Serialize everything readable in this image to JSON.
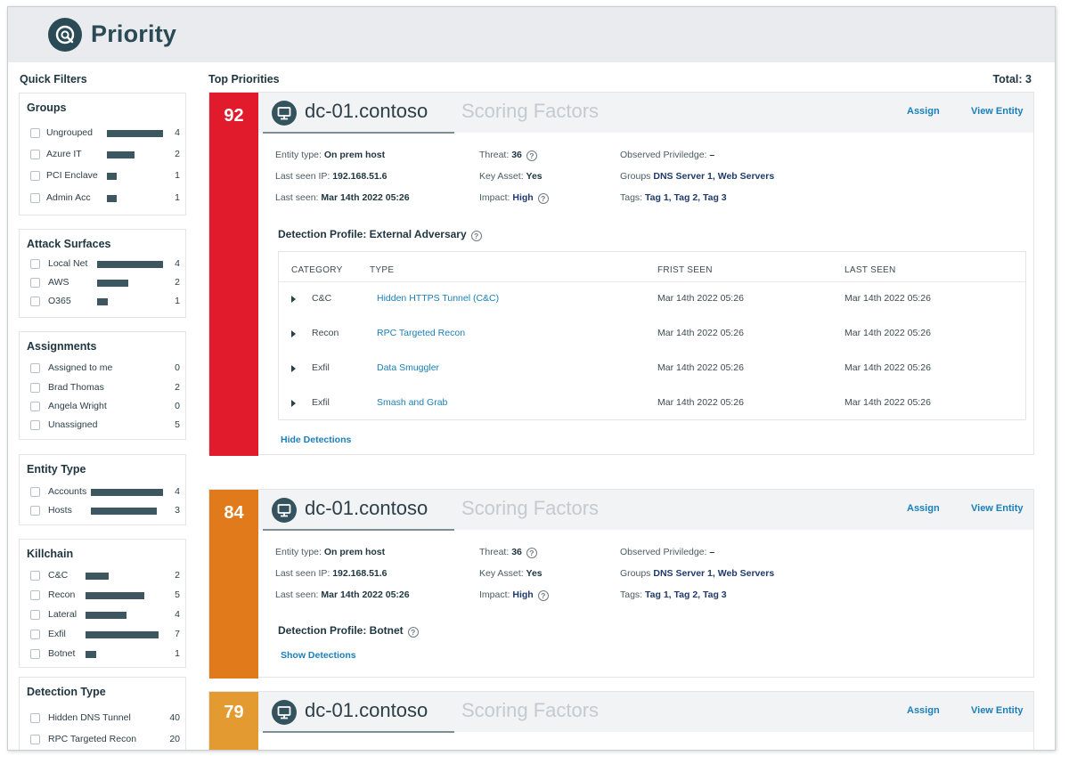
{
  "app": {
    "title": "Priority"
  },
  "sidebar": {
    "title": "Quick Filters",
    "groups": [
      {
        "title": "Groups",
        "items": [
          {
            "label": "Ungrouped",
            "count": "4",
            "level": 0.63
          },
          {
            "label": "Azure IT",
            "count": "2",
            "level": 0.31
          },
          {
            "label": "PCI Enclave",
            "count": "1",
            "level": 0.11
          },
          {
            "label": "Admin Acc",
            "count": "1",
            "level": 0.11
          }
        ]
      },
      {
        "title": "Attack Surfaces",
        "items": [
          {
            "label": "Local Net",
            "count": "4",
            "level": 0.73
          },
          {
            "label": "AWS",
            "count": "2",
            "level": 0.35
          },
          {
            "label": "O365",
            "count": "1",
            "level": 0.12
          }
        ]
      },
      {
        "title": "Assignments",
        "items": [
          {
            "label": "Assigned to me",
            "count": "0"
          },
          {
            "label": "Brad Thomas",
            "count": "2"
          },
          {
            "label": "Angela Wright",
            "count": "0"
          },
          {
            "label": "Unassigned",
            "count": "5"
          }
        ]
      },
      {
        "title": "Entity Type",
        "items": [
          {
            "label": "Accounts",
            "count": "4",
            "level": 0.82
          },
          {
            "label": "Hosts",
            "count": "3",
            "level": 0.75
          }
        ]
      },
      {
        "title": "Killchain",
        "items": [
          {
            "label": "C&C",
            "count": "2",
            "level": 0.26
          },
          {
            "label": "Recon",
            "count": "5",
            "level": 0.66
          },
          {
            "label": "Lateral",
            "count": "4",
            "level": 0.46
          },
          {
            "label": "Exfil",
            "count": "7",
            "level": 0.82
          },
          {
            "label": "Botnet",
            "count": "1",
            "level": 0.12
          }
        ]
      },
      {
        "title": "Detection Type",
        "items": [
          {
            "label": "Hidden DNS Tunnel",
            "count": "40"
          },
          {
            "label": "RPC Targeted Recon",
            "count": "20"
          }
        ]
      }
    ]
  },
  "main": {
    "title": "Top Priorities",
    "total": "Total: 3"
  },
  "colors": {
    "score_red": "#e21b2c",
    "score_orange": "#e07a1a",
    "score_amber": "#e39a30",
    "link": "#1a7fb8"
  },
  "cards": [
    {
      "score": "92",
      "entity": "dc-01.contoso",
      "scoring": "Scoring Factors",
      "assign": "Assign",
      "view": "View Entity",
      "entity_type_label": "Entity type:",
      "entity_type": "On prem host",
      "ip_label": "Last seen IP:",
      "ip": "192.168.51.6",
      "last_seen_label": "Last seen:",
      "last_seen": "Mar 14th 2022 05:26",
      "threat_label": "Threat:",
      "threat": "36",
      "key_asset_label": "Key Asset:",
      "key_asset": "Yes",
      "impact_label": "Impact:",
      "impact": "High",
      "observed_label": "Observed Priviledge:",
      "observed": "–",
      "groups_label": "Groups",
      "groups": "DNS Server 1, Web Servers",
      "tags_label": "Tags:",
      "tags": "Tag 1, Tag 2, Tag 3",
      "profile": "Detection Profile: External Adversary",
      "toggle": "Hide Detections",
      "table": {
        "headers": [
          "CATEGORY",
          "TYPE",
          "FRIST SEEN",
          "LAST SEEN"
        ],
        "rows": [
          {
            "category": "C&C",
            "type": "Hidden HTTPS Tunnel (C&C)",
            "first": "Mar 14th 2022 05:26",
            "last": "Mar 14th 2022 05:26"
          },
          {
            "category": "Recon",
            "type": "RPC Targeted Recon",
            "first": "Mar 14th 2022 05:26",
            "last": "Mar 14th 2022 05:26"
          },
          {
            "category": "Exfil",
            "type": "Data Smuggler",
            "first": "Mar 14th 2022 05:26",
            "last": "Mar 14th 2022 05:26"
          },
          {
            "category": "Exfil",
            "type": "Smash and Grab",
            "first": "Mar 14th 2022 05:26",
            "last": "Mar 14th 2022 05:26"
          }
        ]
      }
    },
    {
      "score": "84",
      "entity": "dc-01.contoso",
      "scoring": "Scoring Factors",
      "assign": "Assign",
      "view": "View Entity",
      "entity_type_label": "Entity type:",
      "entity_type": "On prem host",
      "ip_label": "Last seen IP:",
      "ip": "192.168.51.6",
      "last_seen_label": "Last seen:",
      "last_seen": "Mar 14th 2022 05:26",
      "threat_label": "Threat:",
      "threat": "36",
      "key_asset_label": "Key Asset:",
      "key_asset": "Yes",
      "impact_label": "Impact:",
      "impact": "High",
      "observed_label": "Observed Priviledge:",
      "observed": "–",
      "groups_label": "Groups",
      "groups": "DNS Server 1, Web Servers",
      "tags_label": "Tags:",
      "tags": "Tag 1, Tag 2, Tag 3",
      "profile": "Detection Profile: Botnet",
      "toggle": "Show Detections"
    },
    {
      "score": "79",
      "entity": "dc-01.contoso",
      "scoring": "Scoring Factors",
      "assign": "Assign",
      "view": "View Entity"
    }
  ]
}
